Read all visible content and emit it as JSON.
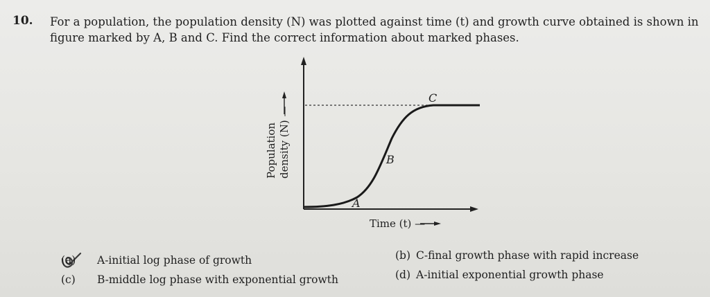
{
  "question": {
    "number": "10.",
    "line1": "For a population, the population density (N) was plotted against time (t) and growth curve obtained is shown in",
    "line2": "figure marked by A, B and C. Find the correct information about marked phases."
  },
  "graph": {
    "ylabel_line1": "Population",
    "ylabel_line2": "density (N) —",
    "xlabel": "Time (t) —",
    "point_a": "A",
    "point_b": "B",
    "point_c": "C"
  },
  "options": [
    {
      "key": "(a)",
      "text": "A-initial log phase of growth"
    },
    {
      "key": "(b)",
      "text": "C-final growth phase with rapid increase"
    },
    {
      "key": "(c)",
      "text": "B-middle log phase with exponential growth"
    },
    {
      "key": "(d)",
      "text": "A-initial exponential growth phase"
    }
  ]
}
